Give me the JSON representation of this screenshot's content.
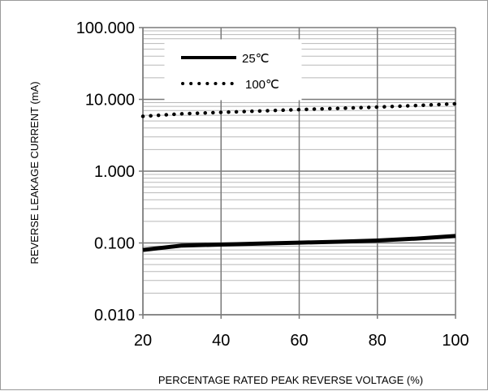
{
  "chart_data": {
    "type": "line",
    "title": "",
    "xlabel": "PERCENTAGE RATED PEAK REVERSE VOLTAGE (%)",
    "ylabel": "REVERSE LEAKAGE CURRENT (mA)",
    "x_ticks": [
      "20",
      "40",
      "60",
      "80",
      "100"
    ],
    "y_ticks": [
      "0.010",
      "0.100",
      "1.000",
      "10.000",
      "100.000"
    ],
    "xlim": [
      20,
      100
    ],
    "ylim": [
      0.01,
      100
    ],
    "y_scale": "log",
    "grid": true,
    "legend_position": "top-left",
    "series": [
      {
        "name": "25℃",
        "line_style": "solid",
        "color": "#000000",
        "x": [
          20,
          30,
          40,
          50,
          60,
          70,
          80,
          90,
          100
        ],
        "y": [
          0.08,
          0.092,
          0.095,
          0.098,
          0.101,
          0.104,
          0.108,
          0.115,
          0.125
        ]
      },
      {
        "name": "100℃",
        "line_style": "dotted",
        "color": "#000000",
        "x": [
          20,
          30,
          40,
          50,
          60,
          70,
          80,
          90,
          100
        ],
        "y": [
          5.8,
          6.3,
          6.6,
          6.9,
          7.2,
          7.5,
          7.8,
          8.2,
          8.7
        ]
      }
    ]
  }
}
